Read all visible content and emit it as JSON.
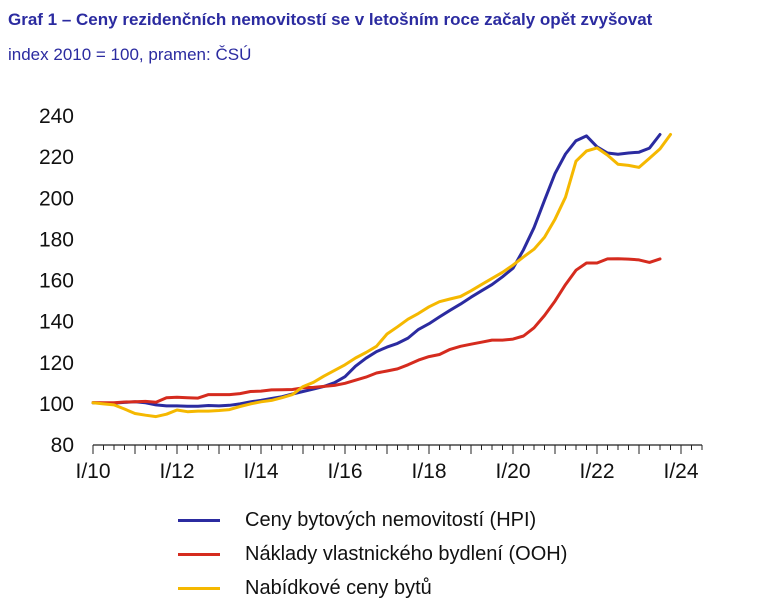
{
  "header": {
    "title": "Graf 1 – Ceny rezidenčních nemovitostí se v letošním roce začaly opět zvyšovat",
    "subtitle": "index 2010 = 100, pramen: ČSÚ"
  },
  "chart_data": {
    "type": "line",
    "title": "Graf 1 – Ceny rezidenčních nemovitostí se v letošním roce začaly opět zvyšovat",
    "subtitle": "index 2010 = 100, pramen: ČSÚ",
    "xlabel": "",
    "ylabel": "",
    "x_ticks": [
      "I/10",
      "I/12",
      "I/14",
      "I/16",
      "I/18",
      "I/20",
      "I/22",
      "I/24"
    ],
    "y_ticks": [
      80,
      100,
      120,
      140,
      160,
      180,
      200,
      220,
      240
    ],
    "ylim": [
      80,
      240
    ],
    "grid": false,
    "legend": "bottom",
    "series": [
      {
        "name": "Ceny bytových nemovitostí (HPI)",
        "color": "#2b2ba0",
        "values": [
          100.5,
          100.3,
          100.4,
          100.7,
          101.0,
          100.5,
          99.5,
          99.0,
          99.0,
          98.8,
          98.8,
          99.2,
          99.0,
          99.3,
          100.0,
          101.0,
          101.7,
          102.6,
          103.5,
          104.8,
          106.0,
          107.2,
          108.5,
          110.3,
          113.2,
          118.3,
          122.2,
          125.4,
          127.6,
          129.4,
          132.0,
          136.2,
          139.0,
          142.3,
          145.5,
          148.5,
          151.9,
          155.0,
          158.0,
          161.8,
          166.0,
          175.0,
          185.7,
          199.0,
          212.0,
          221.5,
          228.0,
          230.3,
          225.0,
          222.0,
          221.4,
          222.0,
          222.4,
          224.4,
          231.0
        ]
      },
      {
        "name": "Náklady vlastnického bydlení (OOH)",
        "color": "#d52b1e",
        "values": [
          100.6,
          100.5,
          100.5,
          100.9,
          101.0,
          101.2,
          100.8,
          103.0,
          103.2,
          103.0,
          102.8,
          104.5,
          104.5,
          104.5,
          105.0,
          106.0,
          106.2,
          106.8,
          106.9,
          107.0,
          107.8,
          108.0,
          108.5,
          109.0,
          110.0,
          111.5,
          113.0,
          115.0,
          116.0,
          117.0,
          119.0,
          121.3,
          123.0,
          124.0,
          126.5,
          128.0,
          129.0,
          130.0,
          131.0,
          131.0,
          131.5,
          133.0,
          137.0,
          143.0,
          150.0,
          158.0,
          165.0,
          168.5,
          168.5,
          170.5,
          170.6,
          170.4,
          170.0,
          168.8,
          170.5
        ]
      },
      {
        "name": "Nabídkové ceny bytů",
        "color": "#f5b800",
        "values": [
          100.5,
          100.0,
          99.5,
          97.5,
          95.3,
          94.5,
          93.8,
          95.0,
          97.0,
          96.2,
          96.5,
          96.5,
          96.8,
          97.2,
          98.7,
          100.0,
          101.0,
          101.7,
          103.0,
          104.5,
          108.4,
          110.5,
          113.5,
          116.3,
          119.0,
          122.3,
          125.0,
          128.0,
          134.0,
          137.5,
          141.2,
          144.0,
          147.2,
          149.7,
          151.0,
          152.2,
          155.0,
          158.0,
          161.0,
          164.0,
          167.5,
          171.5,
          175.2,
          181.0,
          189.8,
          200.5,
          218.0,
          223.0,
          224.5,
          221.0,
          216.5,
          216.0,
          215.0,
          219.5,
          224.0,
          231.0
        ]
      }
    ]
  }
}
